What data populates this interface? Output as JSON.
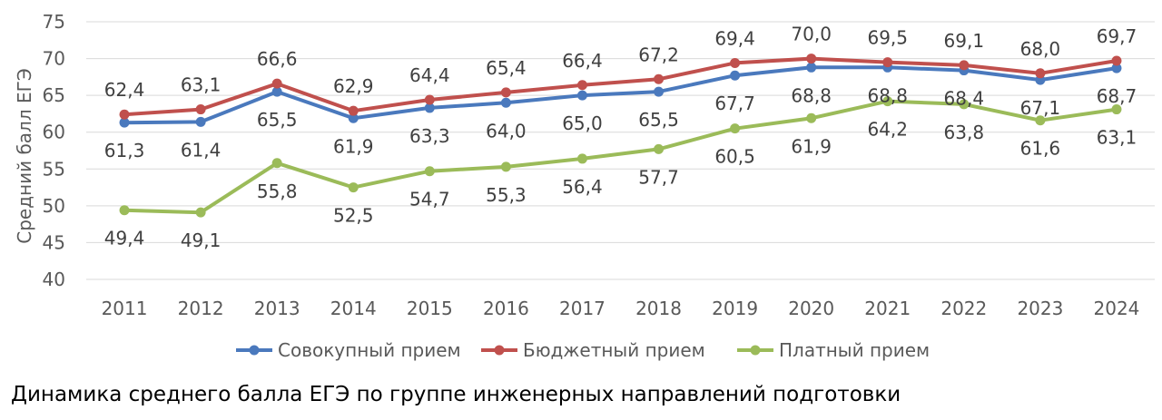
{
  "chart_data": {
    "type": "line",
    "ylabel": "Средний балл ЕГЭ",
    "xlabel": "",
    "ylim": [
      40,
      75
    ],
    "yticks": [
      "40",
      "45",
      "50",
      "55",
      "60",
      "65",
      "70",
      "75"
    ],
    "categories": [
      "2011",
      "2012",
      "2013",
      "2014",
      "2015",
      "2016",
      "2017",
      "2018",
      "2019",
      "2020",
      "2021",
      "2022",
      "2023",
      "2024"
    ],
    "grid": true,
    "legend_position": "bottom",
    "series": [
      {
        "name": "Совокупный прием",
        "color": "#4a79bd",
        "values": [
          61.3,
          61.4,
          65.5,
          61.9,
          63.3,
          64.0,
          65.0,
          65.5,
          67.7,
          68.8,
          68.8,
          68.4,
          67.1,
          68.7
        ],
        "labels": [
          "61,3",
          "61,4",
          "65,5",
          "61,9",
          "63,3",
          "64,0",
          "65,0",
          "65,5",
          "67,7",
          "68,8",
          "68,8",
          "68,4",
          "67,1",
          "68,7"
        ],
        "label_position": "below"
      },
      {
        "name": "Бюджетный прием",
        "color": "#c0504d",
        "values": [
          62.4,
          63.1,
          66.6,
          62.9,
          64.4,
          65.4,
          66.4,
          67.2,
          69.4,
          70.0,
          69.5,
          69.1,
          68.0,
          69.7
        ],
        "labels": [
          "62,4",
          "63,1",
          "66,6",
          "62,9",
          "64,4",
          "65,4",
          "66,4",
          "67,2",
          "69,4",
          "70,0",
          "69,5",
          "69,1",
          "68,0",
          "69,7"
        ],
        "label_position": "above"
      },
      {
        "name": "Платный прием",
        "color": "#9bbb59",
        "values": [
          49.4,
          49.1,
          55.8,
          52.5,
          54.7,
          55.3,
          56.4,
          57.7,
          60.5,
          61.9,
          64.2,
          63.8,
          61.6,
          63.1
        ],
        "labels": [
          "49,4",
          "49,1",
          "55,8",
          "52,5",
          "54,7",
          "55,3",
          "56,4",
          "57,7",
          "60,5",
          "61,9",
          "64,2",
          "63,8",
          "61,6",
          "63,1"
        ],
        "label_position": "below"
      }
    ]
  },
  "caption": "Динамика среднего балла ЕГЭ по группе инженерных направлений подготовки"
}
